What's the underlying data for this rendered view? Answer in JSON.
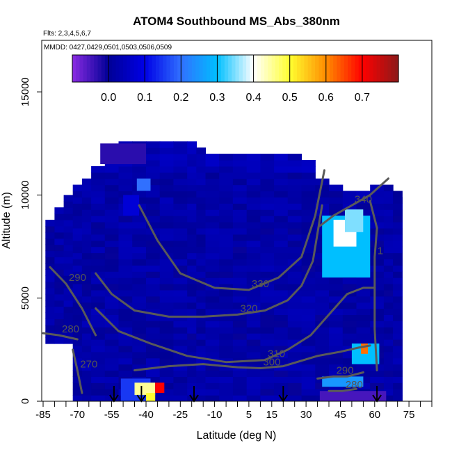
{
  "chart_data": {
    "type": "heatmap",
    "title": "ATOM4 Southbound MS_Abs_380nm",
    "flights_label": "Flts: 2,3,4,5,6,7",
    "dates_label": "MMDD: 0427,0429,0501,0503,0506,0509",
    "xlabel": "Latitude (deg N)",
    "ylabel": "Altitude (m)",
    "xlim": [
      -85,
      85
    ],
    "ylim": [
      0,
      17500
    ],
    "x_ticks": [
      -85,
      -70,
      -55,
      -40,
      -25,
      -10,
      5,
      15,
      30,
      45,
      60,
      75
    ],
    "y_ticks": [
      0,
      5000,
      10000,
      15000
    ],
    "colorbar": {
      "min": -0.1,
      "max": 0.8,
      "ticks": [
        0.0,
        0.1,
        0.2,
        0.3,
        0.4,
        0.5,
        0.6,
        0.7
      ],
      "tick_labels": [
        "0.0",
        "0.1",
        "0.2",
        "0.3",
        "0.4",
        "0.5",
        "0.6",
        "0.7"
      ],
      "colors": [
        "#8b2be2",
        "#000096",
        "#0000e6",
        "#3070ff",
        "#00bfff",
        "#ffffff",
        "#ffff30",
        "#ff8c00",
        "#ff0000",
        "#8b1a1a"
      ]
    },
    "field_background_value": 0.02,
    "anomalies": [
      {
        "lat": [
          -50,
          -43
        ],
        "alt": [
          9000,
          10000
        ],
        "value": 0.08
      },
      {
        "lat": [
          -44,
          -38
        ],
        "alt": [
          10200,
          10800
        ],
        "value": 0.2
      },
      {
        "lat": [
          -60,
          -40
        ],
        "alt": [
          11500,
          12500
        ],
        "value": -0.03
      },
      {
        "lat": [
          37,
          58
        ],
        "alt": [
          6000,
          9000
        ],
        "value": 0.3
      },
      {
        "lat": [
          42,
          52
        ],
        "alt": [
          7500,
          8800
        ],
        "value": 0.4
      },
      {
        "lat": [
          47,
          55
        ],
        "alt": [
          8200,
          9300
        ],
        "value": 0.35
      },
      {
        "lat": [
          50,
          62
        ],
        "alt": [
          1800,
          2800
        ],
        "value": 0.3
      },
      {
        "lat": [
          54,
          57
        ],
        "alt": [
          2300,
          2800
        ],
        "value": 0.62
      },
      {
        "lat": [
          37,
          55
        ],
        "alt": [
          700,
          1200
        ],
        "value": 0.25
      },
      {
        "lat": [
          36,
          65
        ],
        "alt": [
          0,
          500
        ],
        "value": -0.05
      },
      {
        "lat": [
          -51,
          -38
        ],
        "alt": [
          0,
          1100
        ],
        "value": 0.15
      },
      {
        "lat": [
          -45,
          -36
        ],
        "alt": [
          300,
          900
        ],
        "value": 0.45
      },
      {
        "lat": [
          -36,
          -32
        ],
        "alt": [
          400,
          900
        ],
        "value": 0.7
      },
      {
        "lat": [
          -40,
          -36
        ],
        "alt": [
          0,
          400
        ],
        "value": 0.5
      }
    ],
    "contours": [
      {
        "label": "340",
        "points": [
          [
            36,
            8500
          ],
          [
            42,
            9000
          ],
          [
            50,
            9500
          ],
          [
            58,
            10000
          ],
          [
            66,
            10800
          ]
        ]
      },
      {
        "label": "330",
        "points": [
          [
            -43,
            9500
          ],
          [
            -35,
            7800
          ],
          [
            -25,
            6200
          ],
          [
            -10,
            5500
          ],
          [
            5,
            5400
          ],
          [
            18,
            6000
          ],
          [
            28,
            7000
          ],
          [
            34,
            9000
          ],
          [
            38,
            11200
          ]
        ]
      },
      {
        "label": "320",
        "points": [
          [
            -62,
            6200
          ],
          [
            -55,
            5200
          ],
          [
            -45,
            4400
          ],
          [
            -30,
            4100
          ],
          [
            -15,
            4100
          ],
          [
            0,
            4200
          ],
          [
            12,
            4400
          ],
          [
            22,
            4900
          ],
          [
            28,
            5600
          ],
          [
            33,
            6800
          ],
          [
            37,
            9500
          ]
        ]
      },
      {
        "label": "310",
        "points": [
          [
            -62,
            4500
          ],
          [
            -52,
            3400
          ],
          [
            -38,
            2800
          ],
          [
            -22,
            2200
          ],
          [
            -5,
            1900
          ],
          [
            12,
            2000
          ],
          [
            22,
            2500
          ],
          [
            32,
            3200
          ],
          [
            40,
            4200
          ],
          [
            48,
            5200
          ],
          [
            55,
            5500
          ],
          [
            60,
            5500
          ]
        ]
      },
      {
        "label": "300",
        "points": [
          [
            -45,
            1500
          ],
          [
            -30,
            1700
          ],
          [
            -15,
            1800
          ],
          [
            0,
            1650
          ],
          [
            10,
            1600
          ],
          [
            20,
            1700
          ],
          [
            35,
            2200
          ],
          [
            45,
            2400
          ],
          [
            53,
            2600
          ],
          [
            58,
            2700
          ]
        ]
      },
      {
        "label": "290",
        "points": [
          [
            -82,
            6500
          ],
          [
            -75,
            5700
          ],
          [
            -68,
            4500
          ],
          [
            -62,
            3200
          ]
        ]
      },
      {
        "label": "290",
        "points": [
          [
            35,
            1100
          ],
          [
            42,
            1200
          ],
          [
            48,
            1200
          ],
          [
            55,
            1400
          ]
        ]
      },
      {
        "label": "280",
        "points": [
          [
            -85,
            3300
          ],
          [
            -78,
            3200
          ],
          [
            -70,
            3000
          ]
        ]
      },
      {
        "label": "280",
        "points": [
          [
            40,
            500
          ],
          [
            46,
            500
          ],
          [
            52,
            600
          ]
        ]
      },
      {
        "label": "270",
        "points": [
          [
            -72,
            2500
          ],
          [
            -70,
            1500
          ],
          [
            -68,
            400
          ]
        ]
      },
      {
        "label": "1",
        "points": [
          [
            58,
            9700
          ],
          [
            61,
            8400
          ],
          [
            60,
            7000
          ],
          [
            60,
            5500
          ],
          [
            60,
            3500
          ],
          [
            61,
            1500
          ]
        ]
      }
    ],
    "flight_arrows_lat": [
      -54,
      -42,
      -19,
      20,
      61
    ]
  }
}
